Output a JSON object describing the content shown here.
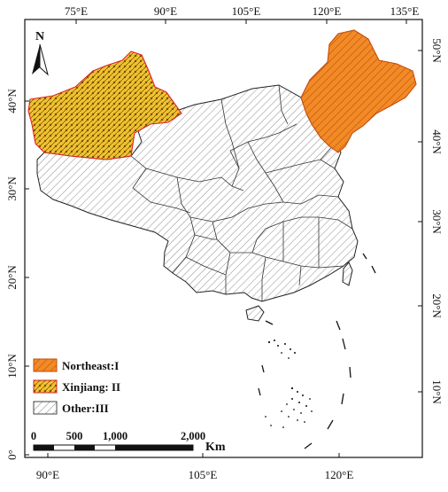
{
  "north_arrow": {
    "label": "N"
  },
  "axes": {
    "top": [
      "75°E",
      "90°E",
      "105°E",
      "120°E",
      "135°E"
    ],
    "bottom": [
      "90°E",
      "105°E",
      "120°E"
    ],
    "left": [
      "40°N",
      "30°N",
      "20°N",
      "10°N",
      "0°"
    ],
    "right": [
      "50°N",
      "40°N",
      "30°N",
      "20°N",
      "10°N"
    ]
  },
  "legend": [
    {
      "key": "northeast",
      "label": "Northeast:I",
      "fill": "#f28a26",
      "stroke": "#c44b0a",
      "pattern": "hatch"
    },
    {
      "key": "xinjiang",
      "label": "Xinjiang: II",
      "fill": "#f1c232",
      "stroke": "#e0242d",
      "pattern": "dots"
    },
    {
      "key": "other",
      "label": "Other:III",
      "fill": "#ffffff",
      "stroke": "#444444",
      "pattern": "hatch"
    }
  ],
  "scale_bar": {
    "ticks": [
      "0",
      "500",
      "1,000",
      "2,000"
    ],
    "unit": "Km"
  },
  "colors": {
    "border": "#111111",
    "province": "#333333",
    "hatch_gray": "#8c8c8c"
  }
}
